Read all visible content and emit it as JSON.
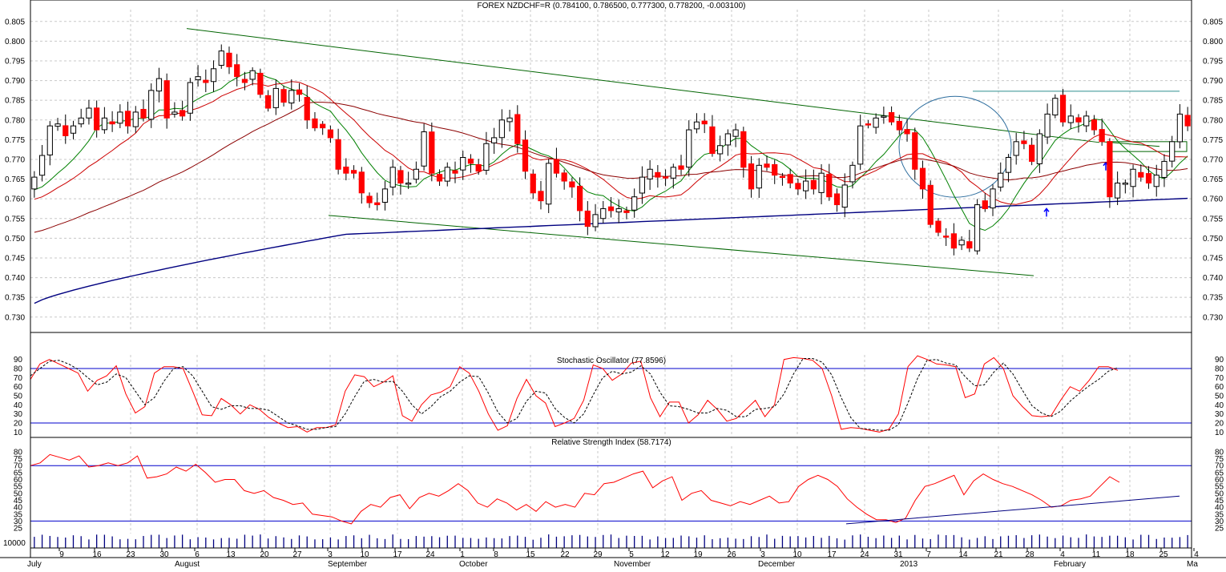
{
  "chart_data": [
    {
      "type": "candlestick",
      "title": "FOREX NZDCHF=R (0.784100, 0.786500, 0.777300, 0.778200, -0.003100)",
      "ylim": [
        0.7265,
        0.808
      ],
      "yticks": [
        0.73,
        0.735,
        0.74,
        0.745,
        0.75,
        0.755,
        0.76,
        0.765,
        0.77,
        0.775,
        0.78,
        0.785,
        0.79,
        0.795,
        0.8,
        0.805
      ],
      "colors": {
        "up": "#ffffff",
        "down": "#ff0000",
        "ma_short": "#008000",
        "ma_mid": "#cc0000",
        "ma_long": "#8b0000",
        "ma_200": "#000080",
        "trendline": "#006400"
      },
      "close": [
        0.7655,
        0.771,
        0.7785,
        0.779,
        0.776,
        0.7785,
        0.7805,
        0.783,
        0.7775,
        0.7805,
        0.779,
        0.782,
        0.7785,
        0.782,
        0.7805,
        0.7875,
        0.7905,
        0.7805,
        0.782,
        0.781,
        0.7895,
        0.791,
        0.7895,
        0.793,
        0.7975,
        0.7935,
        0.791,
        0.7895,
        0.7925,
        0.7865,
        0.783,
        0.788,
        0.7845,
        0.7875,
        0.7865,
        0.78,
        0.778,
        0.778,
        0.7755,
        0.7675,
        0.7665,
        0.7665,
        0.7615,
        0.759,
        0.7585,
        0.7625,
        0.768,
        0.764,
        0.764,
        0.7675,
        0.777,
        0.7665,
        0.7645,
        0.768,
        0.7665,
        0.7705,
        0.769,
        0.767,
        0.774,
        0.7755,
        0.78,
        0.7805,
        0.774,
        0.767,
        0.7615,
        0.7595,
        0.769,
        0.7665,
        0.7645,
        0.763,
        0.757,
        0.753,
        0.756,
        0.7575,
        0.757,
        0.7575,
        0.7565,
        0.7605,
        0.7655,
        0.7675,
        0.7655,
        0.7655,
        0.768,
        0.7675,
        0.7775,
        0.7795,
        0.779,
        0.7715,
        0.7735,
        0.7765,
        0.7775,
        0.768,
        0.7625,
        0.7685,
        0.768,
        0.766,
        0.7655,
        0.764,
        0.7625,
        0.7645,
        0.7625,
        0.7665,
        0.7605,
        0.7585,
        0.7635,
        0.7685,
        0.7785,
        0.779,
        0.7805,
        0.781,
        0.7795,
        0.7775,
        0.7765,
        0.7675,
        0.7625,
        0.7535,
        0.7515,
        0.7505,
        0.7475,
        0.7495,
        0.7475,
        0.7585,
        0.7575,
        0.7625,
        0.7665,
        0.7705,
        0.7745,
        0.774,
        0.7695,
        0.7765,
        0.7815,
        0.7855,
        0.7795,
        0.781,
        0.7795,
        0.781,
        0.7775,
        0.7745,
        0.7605,
        0.764,
        0.764,
        0.7675,
        0.7655,
        0.764,
        0.766,
        0.7695,
        0.7745,
        0.7815,
        0.7785
      ]
    },
    {
      "type": "line",
      "title": "Stochastic Oscillator (77.8596)",
      "ylim": [
        5,
        95
      ],
      "yticks": [
        10,
        20,
        30,
        40,
        50,
        60,
        70,
        80,
        90
      ],
      "reference_lines": [
        20,
        80
      ],
      "series": [
        {
          "color": "#ff0000",
          "values": [
            68,
            85,
            90,
            85,
            80,
            75,
            55,
            67,
            72,
            83,
            52,
            31,
            38,
            75,
            82,
            82,
            80,
            55,
            29,
            28,
            47,
            40,
            30,
            40,
            35,
            26,
            20,
            15,
            16,
            10,
            15,
            15,
            18,
            55,
            73,
            71,
            60,
            65,
            72,
            28,
            22,
            40,
            51,
            54,
            60,
            82,
            75,
            55,
            30,
            12,
            17,
            47,
            68,
            50,
            42,
            16,
            20,
            25,
            45,
            84,
            80,
            67,
            74,
            86,
            88,
            48,
            27,
            43,
            43,
            20,
            29,
            45,
            35,
            22,
            25,
            35,
            45,
            27,
            40,
            90,
            92,
            91,
            89,
            80,
            50,
            13,
            15,
            14,
            12,
            10,
            13,
            30,
            82,
            94,
            90,
            85,
            84,
            82,
            48,
            52,
            85,
            92,
            80,
            50,
            38,
            28,
            27,
            28,
            45,
            60,
            55,
            67,
            82,
            82,
            78
          ]
        },
        {
          "color": "#000000",
          "values": [
            72,
            80,
            88,
            89,
            85,
            79,
            70,
            62,
            65,
            74,
            70,
            55,
            40,
            48,
            66,
            80,
            82,
            72,
            55,
            38,
            35,
            39,
            39,
            36,
            36,
            34,
            27,
            20,
            17,
            13,
            13,
            15,
            16,
            30,
            49,
            66,
            68,
            65,
            66,
            55,
            40,
            30,
            38,
            49,
            55,
            65,
            72,
            71,
            53,
            32,
            20,
            25,
            44,
            55,
            53,
            36,
            26,
            20,
            30,
            51,
            70,
            77,
            74,
            76,
            83,
            74,
            54,
            39,
            38,
            35,
            31,
            31,
            36,
            34,
            27,
            27,
            35,
            36,
            38,
            52,
            74,
            91,
            91,
            87,
            73,
            48,
            26,
            14,
            13,
            12,
            12,
            18,
            42,
            69,
            89,
            90,
            86,
            84,
            71,
            61,
            62,
            76,
            86,
            74,
            56,
            39,
            31,
            27,
            33,
            44,
            53,
            61,
            68,
            77,
            81
          ]
        }
      ]
    },
    {
      "type": "line",
      "title": "Relative Strength Index (58.7174)",
      "ylim": [
        21,
        84
      ],
      "yticks": [
        25,
        30,
        35,
        40,
        45,
        50,
        55,
        60,
        65,
        70,
        75,
        80
      ],
      "reference_lines": [
        30,
        70
      ],
      "series": [
        {
          "color": "#ff0000",
          "values": [
            70,
            72,
            78,
            76,
            74,
            77,
            69,
            70,
            72,
            70,
            72,
            77,
            61,
            62,
            64,
            69,
            66,
            71,
            65,
            58,
            60,
            60,
            52,
            50,
            52,
            47,
            45,
            42,
            43,
            35,
            34,
            33,
            30,
            28,
            37,
            42,
            40,
            47,
            49,
            39,
            47,
            50,
            48,
            52,
            57,
            52,
            43,
            40,
            46,
            43,
            38,
            42,
            37,
            44,
            40,
            42,
            40,
            50,
            49,
            57,
            58,
            61,
            64,
            66,
            54,
            59,
            62,
            45,
            50,
            52,
            45,
            43,
            41,
            44,
            42,
            45,
            48,
            43,
            44,
            55,
            60,
            63,
            60,
            55,
            46,
            40,
            35,
            31,
            31,
            29,
            32,
            45,
            55,
            57,
            60,
            63,
            49,
            59,
            64,
            60,
            57,
            55,
            52,
            49,
            45,
            40,
            41,
            45,
            46,
            48,
            55,
            62,
            58
          ]
        },
        {
          "color": "#000080",
          "values": [
            28,
            48
          ]
        }
      ]
    }
  ],
  "x_axis": {
    "day_labels": [
      "9",
      "16",
      "23",
      "30",
      "6",
      "13",
      "20",
      "27",
      "3",
      "10",
      "17",
      "24",
      "1",
      "8",
      "15",
      "22",
      "29",
      "5",
      "12",
      "19",
      "26",
      "3",
      "10",
      "17",
      "24",
      "31",
      "7",
      "14",
      "21",
      "28",
      "4",
      "11",
      "18",
      "25",
      "4"
    ],
    "month_labels": [
      "July",
      "August",
      "September",
      "October",
      "November",
      "December",
      "2013",
      "February",
      "Ma"
    ]
  },
  "volume_label": "10000"
}
